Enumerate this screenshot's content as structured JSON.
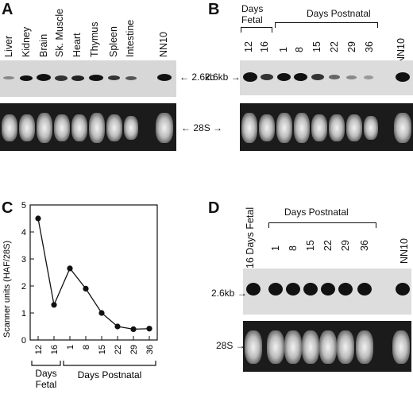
{
  "panels": {
    "A": {
      "letter": "A",
      "lanes": [
        "Liver",
        "Kidney",
        "Brain",
        "Sk. Muscle",
        "Heart",
        "Thymus",
        "Spleen",
        "Intestine",
        "NN10"
      ],
      "band_label": "2.6kb",
      "gel_label": "28S"
    },
    "B": {
      "letter": "B",
      "group_fetal": [
        "Days",
        "Fetal"
      ],
      "group_postnatal": "Days  Postnatal",
      "lanes": [
        "12",
        "16",
        "1",
        "8",
        "15",
        "22",
        "29",
        "36",
        "NN10"
      ],
      "band_label": "2.6kb"
    },
    "C": {
      "letter": "C"
    },
    "D": {
      "letter": "D",
      "group_postnatal": "Days  Postnatal",
      "lanes": [
        "16 Days Fetal",
        "1",
        "8",
        "15",
        "22",
        "29",
        "36",
        "NN10"
      ],
      "band_label": "2.6kb",
      "gel_label": "28S"
    }
  },
  "chart_data": {
    "type": "line",
    "categories": [
      "12",
      "16",
      "1",
      "8",
      "15",
      "22",
      "29",
      "36"
    ],
    "values": [
      4.5,
      1.3,
      2.65,
      1.9,
      1.0,
      0.5,
      0.4,
      0.42
    ],
    "ylabel": "Scanner units (HAF/28S)",
    "xlabel": "",
    "ylim": [
      0,
      5
    ],
    "yticks": [
      0,
      1,
      2,
      3,
      4,
      5
    ],
    "group_labels": [
      [
        "Days",
        "Fetal"
      ],
      "Days  Postnatal"
    ]
  }
}
